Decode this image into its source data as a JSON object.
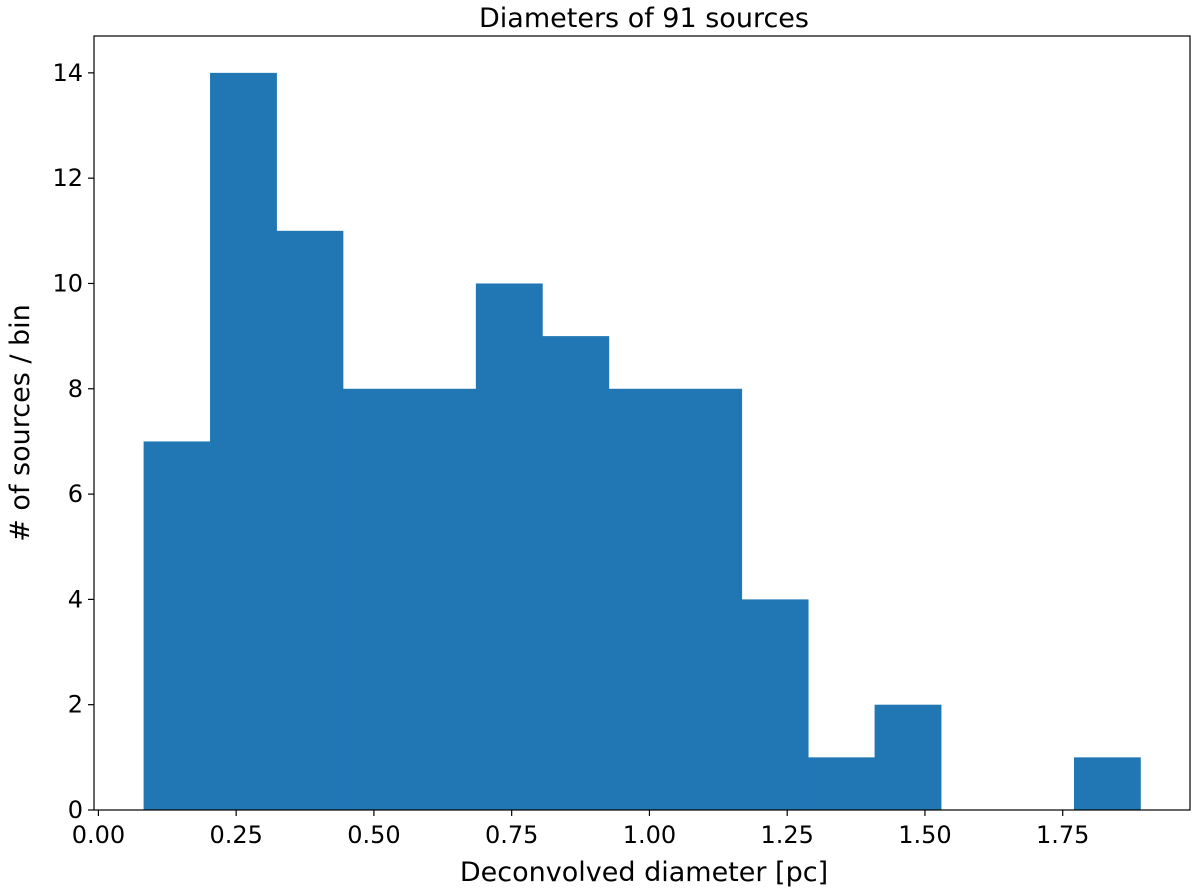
{
  "chart_data": {
    "type": "bar",
    "histogram": true,
    "title": "Diameters of 91 sources",
    "xlabel": "Deconvolved diameter [pc]",
    "ylabel": "# of sources / bin",
    "bin_edges": [
      0.082,
      0.2026,
      0.3232,
      0.4438,
      0.5644,
      0.685,
      0.8056,
      0.9262,
      1.0468,
      1.1674,
      1.288,
      1.4086,
      1.5292,
      1.6498,
      1.7704,
      1.891
    ],
    "values": [
      7,
      14,
      11,
      8,
      8,
      10,
      9,
      8,
      8,
      4,
      1,
      2,
      0,
      0,
      1
    ],
    "xlim": [
      -0.008,
      1.981
    ],
    "ylim": [
      0,
      14.7
    ],
    "xticks": [
      0.0,
      0.25,
      0.5,
      0.75,
      1.0,
      1.25,
      1.5,
      1.75
    ],
    "xtick_labels": [
      "0.00",
      "0.25",
      "0.50",
      "0.75",
      "1.00",
      "1.25",
      "1.50",
      "1.75"
    ],
    "yticks": [
      0,
      2,
      4,
      6,
      8,
      10,
      12,
      14
    ],
    "ytick_labels": [
      "0",
      "2",
      "4",
      "6",
      "8",
      "10",
      "12",
      "14"
    ],
    "bar_color": "#2077b4",
    "grid": false,
    "legend": "none"
  }
}
